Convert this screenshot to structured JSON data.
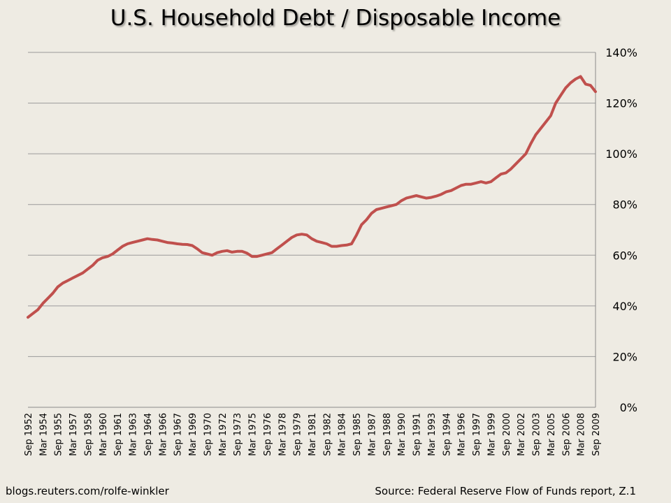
{
  "title": "U.S. Household Debt / Disposable Income",
  "footer": {
    "left": "blogs.reuters.com/rolfe-winkler",
    "right": "Source: Federal Reserve Flow of Funds report, Z.1"
  },
  "colors": {
    "line": "#c0504d",
    "grid": "#9a9a9a",
    "background": "#eeebe3"
  },
  "chart_data": {
    "type": "line",
    "title": "U.S. Household Debt / Disposable Income",
    "xlabel": "",
    "ylabel": "",
    "y_axis_position": "right",
    "ylim": [
      0,
      140
    ],
    "y_ticks": [
      0,
      20,
      40,
      60,
      80,
      100,
      120,
      140
    ],
    "y_tick_labels": [
      "0%",
      "20%",
      "40%",
      "60%",
      "80%",
      "100%",
      "120%",
      "140%"
    ],
    "grid": true,
    "legend": "none",
    "xlim": [
      1952.75,
      2009.75
    ],
    "x_tick_labels": [
      "Sep 1952",
      "Mar 1954",
      "Sep 1955",
      "Mar 1957",
      "Sep 1958",
      "Mar 1960",
      "Sep 1961",
      "Mar 1963",
      "Sep 1964",
      "Mar 1966",
      "Sep 1967",
      "Mar 1969",
      "Sep 1970",
      "Mar 1972",
      "Sep 1973",
      "Mar 1975",
      "Sep 1976",
      "Mar 1978",
      "Sep 1979",
      "Mar 1981",
      "Sep 1982",
      "Mar 1984",
      "Sep 1985",
      "Mar 1987",
      "Sep 1988",
      "Mar 1990",
      "Sep 1991",
      "Mar 1993",
      "Sep 1994",
      "Mar 1996",
      "Sep 1997",
      "Mar 1999",
      "Sep 2000",
      "Mar 2002",
      "Sep 2003",
      "Mar 2005",
      "Sep 2006",
      "Mar 2008",
      "Sep 2009"
    ],
    "series": [
      {
        "x": [
          "Sep 1952",
          "Mar 1953",
          "Sep 1953",
          "Mar 1954",
          "Sep 1954",
          "Mar 1955",
          "Sep 1955",
          "Mar 1956",
          "Sep 1956",
          "Mar 1957",
          "Sep 1957",
          "Mar 1958",
          "Sep 1958",
          "Mar 1959",
          "Sep 1959",
          "Mar 1960",
          "Sep 1960",
          "Mar 1961",
          "Sep 1961",
          "Mar 1962",
          "Sep 1962",
          "Mar 1963",
          "Sep 1963",
          "Mar 1964",
          "Sep 1964",
          "Mar 1965",
          "Sep 1965",
          "Mar 1966",
          "Sep 1966",
          "Mar 1967",
          "Sep 1967",
          "Mar 1968",
          "Sep 1968",
          "Mar 1969",
          "Sep 1969",
          "Mar 1970",
          "Sep 1970",
          "Mar 1971",
          "Sep 1971",
          "Mar 1972",
          "Sep 1972",
          "Mar 1973",
          "Sep 1973",
          "Mar 1974",
          "Sep 1974",
          "Mar 1975",
          "Sep 1975",
          "Mar 1976",
          "Sep 1976",
          "Mar 1977",
          "Sep 1977",
          "Mar 1978",
          "Sep 1978",
          "Mar 1979",
          "Sep 1979",
          "Mar 1980",
          "Sep 1980",
          "Mar 1981",
          "Sep 1981",
          "Mar 1982",
          "Sep 1982",
          "Mar 1983",
          "Sep 1983",
          "Mar 1984",
          "Sep 1984",
          "Mar 1985",
          "Sep 1985",
          "Mar 1986",
          "Sep 1986",
          "Mar 1987",
          "Sep 1987",
          "Mar 1988",
          "Sep 1988",
          "Mar 1989",
          "Sep 1989",
          "Mar 1990",
          "Sep 1990",
          "Mar 1991",
          "Sep 1991",
          "Mar 1992",
          "Sep 1992",
          "Mar 1993",
          "Sep 1993",
          "Mar 1994",
          "Sep 1994",
          "Mar 1995",
          "Sep 1995",
          "Mar 1996",
          "Sep 1996",
          "Mar 1997",
          "Sep 1997",
          "Mar 1998",
          "Sep 1998",
          "Mar 1999",
          "Sep 1999",
          "Mar 2000",
          "Sep 2000",
          "Mar 2001",
          "Sep 2001",
          "Mar 2002",
          "Sep 2002",
          "Mar 2003",
          "Sep 2003",
          "Mar 2004",
          "Sep 2004",
          "Mar 2005",
          "Sep 2005",
          "Mar 2006",
          "Sep 2006",
          "Mar 2007",
          "Sep 2007",
          "Mar 2008",
          "Sep 2008",
          "Mar 2009",
          "Sep 2009"
        ],
        "values": [
          35.5,
          37,
          38.5,
          41,
          43,
          45,
          47.5,
          49,
          50,
          51,
          52,
          53,
          54.5,
          56,
          58,
          59,
          59.5,
          60.5,
          62,
          63.5,
          64.5,
          65,
          65.5,
          66,
          66.5,
          66.2,
          66,
          65.5,
          65,
          64.8,
          64.5,
          64.3,
          64.2,
          63.8,
          62.5,
          61,
          60.5,
          60,
          61,
          61.5,
          61.8,
          61.2,
          61.5,
          61.5,
          60.8,
          59.5,
          59.5,
          60,
          60.5,
          61,
          62.5,
          64,
          65.5,
          67,
          68,
          68.3,
          68,
          66.5,
          65.5,
          65,
          64.5,
          63.5,
          63.5,
          63.8,
          64,
          64.5,
          68,
          72,
          74,
          76.5,
          78,
          78.5,
          79,
          79.5,
          80,
          81.5,
          82.5,
          83,
          83.5,
          83,
          82.5,
          82.8,
          83.3,
          84,
          85,
          85.5,
          86.5,
          87.5,
          88,
          88,
          88.5,
          89,
          88.5,
          89,
          90.5,
          92,
          92.5,
          94,
          96,
          98,
          100,
          104,
          107.5,
          110,
          112.5,
          115,
          120,
          123,
          126,
          128,
          129.5,
          130.5,
          127.5,
          127,
          124.5
        ]
      }
    ]
  }
}
